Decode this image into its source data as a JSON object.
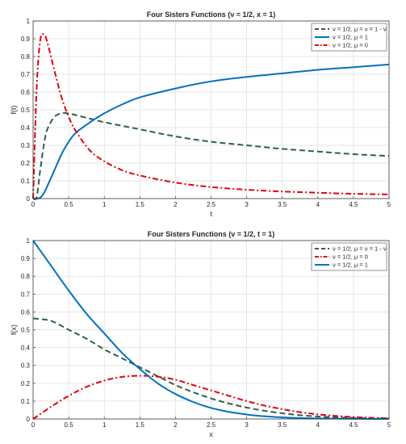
{
  "chart_data": [
    {
      "type": "line",
      "title": "Four Sisters Functions (ν = 1/2, x = 1)",
      "xlabel": "t",
      "ylabel": "f(t)",
      "xlim": [
        0,
        5
      ],
      "ylim": [
        0,
        1
      ],
      "xticks": [
        "0",
        "0.5",
        "1",
        "1.5",
        "2",
        "2.5",
        "3",
        "3.5",
        "4",
        "4.5",
        "5"
      ],
      "yticks": [
        "0",
        "0.1",
        "0.2",
        "0.3",
        "0.4",
        "0.5",
        "0.6",
        "0.7",
        "0.8",
        "0.9",
        "1"
      ],
      "grid": true,
      "legend_position": "top-right",
      "x": [
        0,
        0.05,
        0.1,
        0.15,
        0.2,
        0.3,
        0.4,
        0.5,
        0.6,
        0.8,
        1,
        1.25,
        1.5,
        2,
        2.5,
        3,
        3.5,
        4,
        4.5,
        5
      ],
      "series": [
        {
          "name": "ν = 1/2, μ = ν = 1 - ν",
          "color": "#2e5e4e",
          "dash": "7,4",
          "values": [
            0,
            0.01,
            0.16,
            0.3,
            0.39,
            0.46,
            0.48,
            0.48,
            0.47,
            0.45,
            0.43,
            0.41,
            0.39,
            0.35,
            0.32,
            0.3,
            0.28,
            0.265,
            0.25,
            0.24
          ]
        },
        {
          "name": "ν = 1/2, μ = 1",
          "color": "#0072bd",
          "dash": "",
          "values": [
            0,
            0.0,
            0.005,
            0.03,
            0.07,
            0.16,
            0.25,
            0.32,
            0.37,
            0.43,
            0.48,
            0.53,
            0.57,
            0.62,
            0.66,
            0.685,
            0.705,
            0.725,
            0.74,
            0.755
          ]
        },
        {
          "name": "ν = 1/2, μ = 0",
          "color": "#e3000f",
          "dash": "7,3,2,3",
          "values": [
            0,
            0.62,
            0.89,
            0.925,
            0.88,
            0.72,
            0.57,
            0.46,
            0.38,
            0.27,
            0.21,
            0.16,
            0.13,
            0.09,
            0.065,
            0.05,
            0.04,
            0.033,
            0.027,
            0.023
          ]
        }
      ]
    },
    {
      "type": "line",
      "title": "Four Sisters Functions (ν = 1/2, t = 1)",
      "xlabel": "x",
      "ylabel": "f(x)",
      "xlim": [
        0,
        5
      ],
      "ylim": [
        0,
        1
      ],
      "xticks": [
        "0",
        "0.5",
        "1",
        "1.5",
        "2",
        "2.5",
        "3",
        "3.5",
        "4",
        "4.5",
        "5"
      ],
      "yticks": [
        "0",
        "0.1",
        "0.2",
        "0.3",
        "0.4",
        "0.5",
        "0.6",
        "0.7",
        "0.8",
        "0.9",
        "1"
      ],
      "grid": true,
      "legend_position": "top-right",
      "x": [
        0,
        0.25,
        0.5,
        0.75,
        1,
        1.25,
        1.5,
        1.75,
        2,
        2.25,
        2.5,
        2.75,
        3,
        3.25,
        3.5,
        3.75,
        4,
        4.25,
        4.5,
        4.75,
        5
      ],
      "series": [
        {
          "name": "ν = 1/2, μ = ν = 1 - ν",
          "color": "#2e5e4e",
          "dash": "7,4",
          "values": [
            0.564,
            0.55,
            0.5,
            0.45,
            0.39,
            0.34,
            0.29,
            0.24,
            0.19,
            0.15,
            0.115,
            0.087,
            0.064,
            0.046,
            0.032,
            0.021,
            0.014,
            0.009,
            0.006,
            0.003,
            0.002
          ]
        },
        {
          "name": "ν = 1/2, μ = 0",
          "color": "#e3000f",
          "dash": "7,3,2,3",
          "values": [
            0,
            0.068,
            0.13,
            0.18,
            0.215,
            0.236,
            0.242,
            0.237,
            0.22,
            0.19,
            0.16,
            0.13,
            0.1,
            0.075,
            0.055,
            0.038,
            0.026,
            0.017,
            0.011,
            0.007,
            0.004
          ]
        },
        {
          "name": "ν = 1/2, μ = 1",
          "color": "#0072bd",
          "dash": "",
          "values": [
            1,
            0.86,
            0.72,
            0.59,
            0.48,
            0.37,
            0.28,
            0.2,
            0.14,
            0.095,
            0.062,
            0.04,
            0.025,
            0.015,
            0.009,
            0.005,
            0.003,
            0.002,
            0.001,
            0.0005,
            0.0003
          ]
        }
      ]
    }
  ]
}
